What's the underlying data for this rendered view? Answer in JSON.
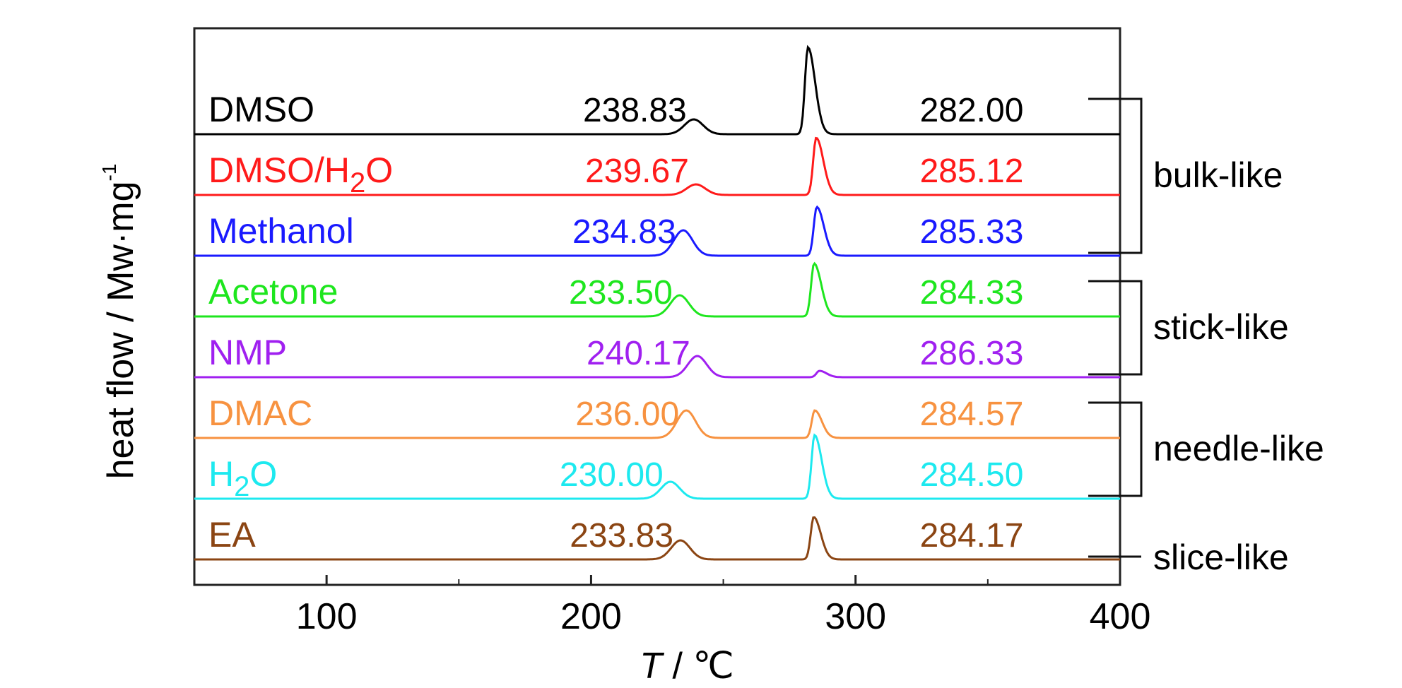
{
  "chart_data": {
    "type": "line",
    "title": "",
    "xlabel_italic": "T",
    "xlabel_rest": " / ℃",
    "ylabel_main": "heat flow / Mw·mg",
    "ylabel_sup": "-1",
    "xlim": [
      50,
      400
    ],
    "x_ticks": [
      100,
      200,
      300,
      400
    ],
    "x_minor_ticks": [
      150,
      250,
      350
    ],
    "grid": false,
    "y_ticks_shown": false,
    "series": [
      {
        "name": "DMSO",
        "name_base": "DMSO",
        "name_sub": "",
        "name_tail": "",
        "color": "#000000",
        "baseline": 0.0,
        "slope": 0.0,
        "peak1": {
          "label": "238.83",
          "x": 238.83,
          "height": 0.07
        },
        "peak2": {
          "label": "282.00",
          "x": 282.0,
          "height": 0.41
        }
      },
      {
        "name": "DMSO/H2O",
        "name_base": "DMSO/H",
        "name_sub": "2",
        "name_tail": "O",
        "color": "#ff1a1a",
        "baseline": 0.0,
        "slope": 0.0,
        "peak1": {
          "label": "239.67",
          "x": 239.67,
          "height": 0.05
        },
        "peak2": {
          "label": "285.12",
          "x": 285.12,
          "height": 0.27
        }
      },
      {
        "name": "Methanol",
        "name_base": "Methanol",
        "name_sub": "",
        "name_tail": "",
        "color": "#1a1aff",
        "baseline": 0.0,
        "slope": 0.0,
        "peak1": {
          "label": "234.83",
          "x": 234.83,
          "height": 0.12
        },
        "peak2": {
          "label": "285.33",
          "x": 285.33,
          "height": 0.23
        }
      },
      {
        "name": "Acetone",
        "name_base": "Acetone",
        "name_sub": "",
        "name_tail": "",
        "color": "#1ee61e",
        "baseline": 0.0,
        "slope": 0.0,
        "peak1": {
          "label": "233.50",
          "x": 233.5,
          "height": 0.1
        },
        "peak2": {
          "label": "284.33",
          "x": 284.33,
          "height": 0.25
        }
      },
      {
        "name": "NMP",
        "name_base": "NMP",
        "name_sub": "",
        "name_tail": "",
        "color": "#a020f0",
        "baseline": 0.0,
        "slope": 0.0,
        "peak1": {
          "label": "240.17",
          "x": 240.17,
          "height": 0.1
        },
        "peak2": {
          "label": "286.33",
          "x": 286.33,
          "height": 0.03
        }
      },
      {
        "name": "DMAC",
        "name_base": "DMAC",
        "name_sub": "",
        "name_tail": "",
        "color": "#f79240",
        "baseline": 0.0,
        "slope": 0.0,
        "peak1": {
          "label": "236.00",
          "x": 236.0,
          "height": 0.13
        },
        "peak2": {
          "label": "284.57",
          "x": 284.57,
          "height": 0.13
        }
      },
      {
        "name": "H2O",
        "name_base": "H",
        "name_sub": "2",
        "name_tail": "O",
        "color": "#1de9ef",
        "baseline": 0.0,
        "slope": 0.0,
        "peak1": {
          "label": "230.00",
          "x": 230.0,
          "height": 0.08
        },
        "peak2": {
          "label": "284.50",
          "x": 284.5,
          "height": 0.3
        }
      },
      {
        "name": "EA",
        "name_base": "EA",
        "name_sub": "",
        "name_tail": "",
        "color": "#8b4513",
        "baseline": 0.0,
        "slope": 0.0,
        "peak1": {
          "label": "233.83",
          "x": 233.83,
          "height": 0.09
        },
        "peak2": {
          "label": "284.17",
          "x": 284.17,
          "height": 0.2
        }
      }
    ],
    "groups": [
      {
        "label": "bulk-like",
        "series": [
          "DMSO",
          "DMSO/H2O",
          "Methanol"
        ]
      },
      {
        "label": "stick-like",
        "series": [
          "Acetone",
          "NMP"
        ]
      },
      {
        "label": "needle-like",
        "series": [
          "DMAC",
          "H2O"
        ]
      },
      {
        "label": "slice-like",
        "series": [
          "EA"
        ]
      }
    ]
  }
}
